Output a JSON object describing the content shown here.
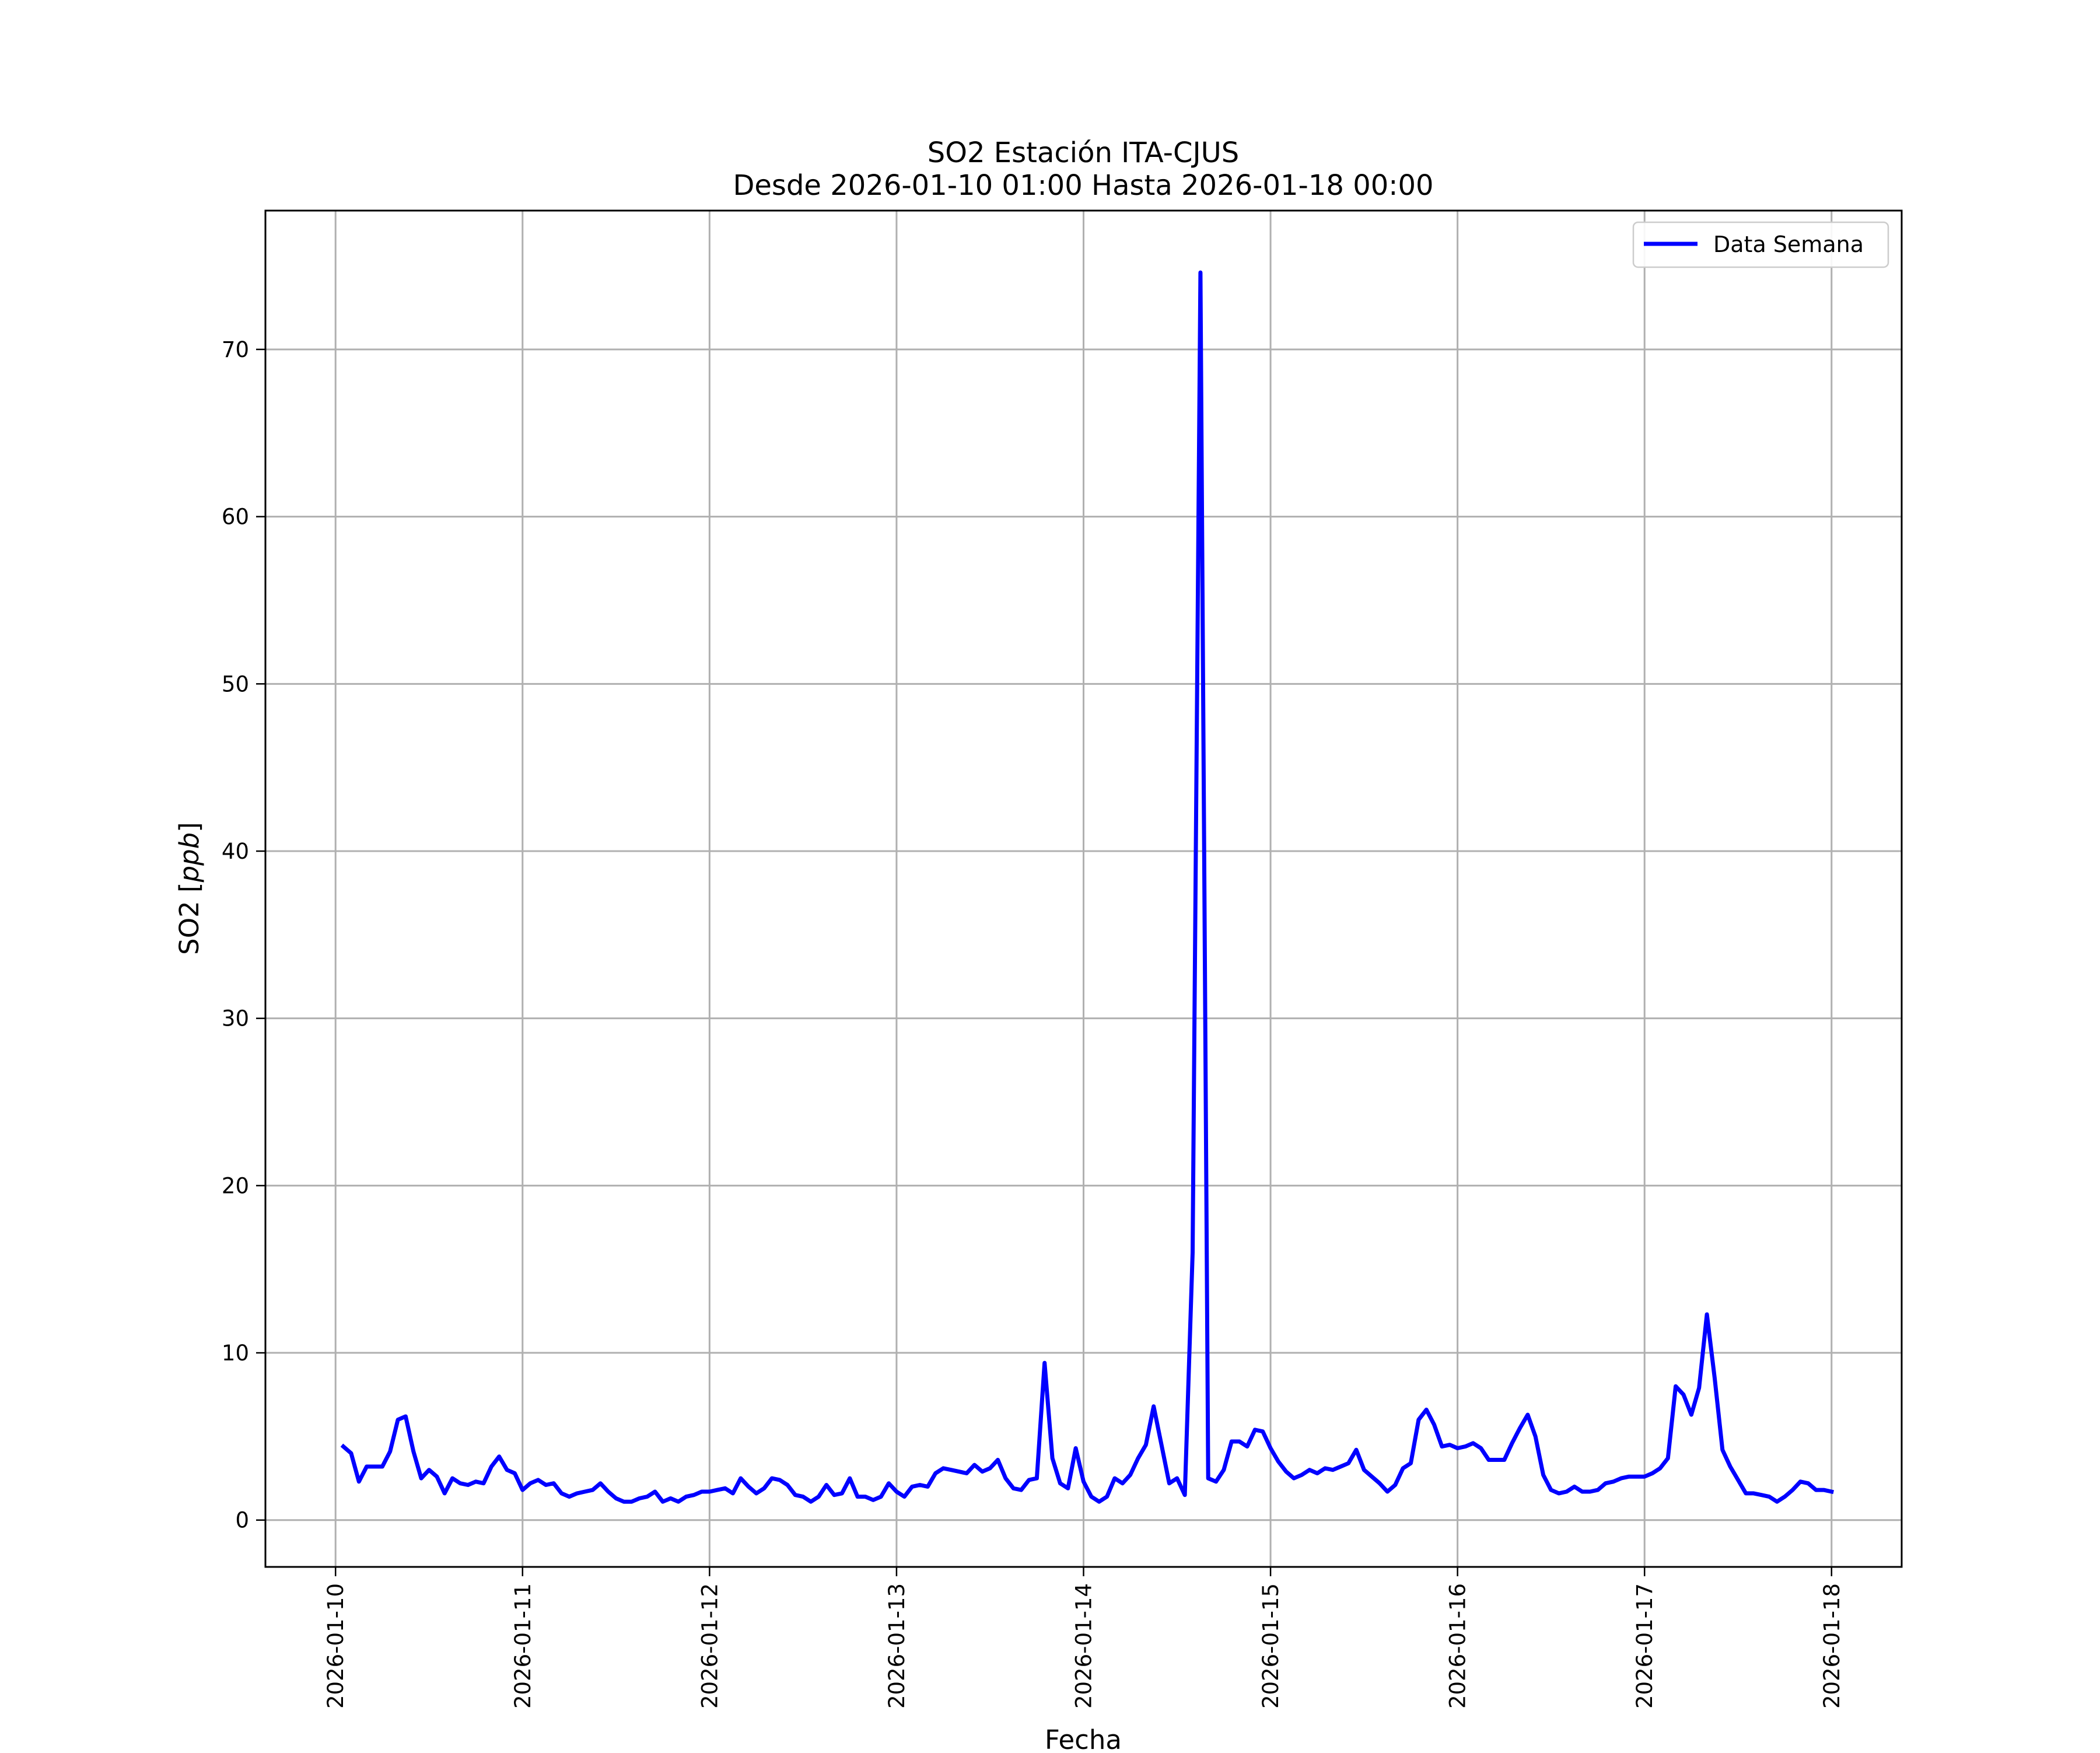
{
  "chart_data": {
    "type": "line",
    "title": "SO2 Estación ITA-CJUS",
    "subtitle": "Desde 2026-01-10 01:00 Hasta 2026-01-18 00:00",
    "xlabel": "Fecha",
    "ylabel_prefix": "SO2 [",
    "ylabel_unit": "ppb",
    "ylabel_suffix": "]",
    "grid": true,
    "legend_position": "top-right",
    "xlim": [
      "2026-01-09 15:00",
      "2026-01-18 09:00"
    ],
    "ylim": [
      -2.8,
      78.3
    ],
    "x_ticks": [
      "2026-01-10",
      "2026-01-11",
      "2026-01-12",
      "2026-01-13",
      "2026-01-14",
      "2026-01-15",
      "2026-01-16",
      "2026-01-17",
      "2026-01-18"
    ],
    "y_ticks": [
      0,
      10,
      20,
      30,
      40,
      50,
      60,
      70
    ],
    "series": [
      {
        "name": "Data Semana",
        "color": "#0000ff",
        "x_start": "2026-01-10 01:00",
        "x_step_hours": 1,
        "values": [
          4.4,
          4.0,
          2.3,
          3.2,
          3.2,
          3.2,
          4.1,
          6.0,
          6.2,
          4.1,
          2.5,
          3.0,
          2.6,
          1.6,
          2.5,
          2.2,
          2.1,
          2.3,
          2.2,
          3.2,
          3.8,
          3.0,
          2.8,
          1.8,
          2.2,
          2.4,
          2.1,
          2.2,
          1.6,
          1.4,
          1.6,
          1.7,
          1.8,
          2.2,
          1.7,
          1.3,
          1.1,
          1.1,
          1.3,
          1.4,
          1.7,
          1.1,
          1.3,
          1.1,
          1.4,
          1.5,
          1.7,
          1.7,
          1.8,
          1.9,
          1.6,
          2.5,
          2.0,
          1.6,
          1.9,
          2.5,
          2.4,
          2.1,
          1.5,
          1.4,
          1.1,
          1.4,
          2.1,
          1.5,
          1.6,
          2.5,
          1.4,
          1.4,
          1.2,
          1.4,
          2.2,
          1.7,
          1.4,
          2.0,
          2.1,
          2.0,
          2.8,
          3.1,
          3.0,
          2.9,
          2.8,
          3.3,
          2.9,
          3.1,
          3.6,
          2.5,
          1.9,
          1.8,
          2.4,
          2.5,
          9.4,
          3.7,
          2.2,
          1.9,
          4.3,
          2.3,
          1.4,
          1.1,
          1.4,
          2.5,
          2.2,
          2.7,
          3.7,
          4.5,
          6.8,
          4.5,
          2.2,
          2.5,
          1.5,
          16.0,
          74.6,
          2.5,
          2.3,
          3.0,
          4.7,
          4.7,
          4.4,
          5.4,
          5.3,
          4.3,
          3.5,
          2.9,
          2.5,
          2.7,
          3.0,
          2.8,
          3.1,
          3.0,
          3.2,
          3.4,
          4.2,
          3.0,
          2.6,
          2.2,
          1.7,
          2.1,
          3.1,
          3.4,
          6.0,
          6.6,
          5.7,
          4.4,
          4.5,
          4.3,
          4.4,
          4.6,
          4.3,
          3.6,
          3.6,
          3.6,
          4.6,
          5.5,
          6.3,
          5.0,
          2.7,
          1.8,
          1.6,
          1.7,
          2.0,
          1.7,
          1.7,
          1.8,
          2.2,
          2.3,
          2.5,
          2.6,
          2.6,
          2.6,
          2.8,
          3.1,
          3.7,
          8.0,
          7.5,
          6.3,
          7.9,
          12.3,
          8.5,
          4.2,
          3.2,
          2.4,
          1.6,
          1.6,
          1.5,
          1.4,
          1.1,
          1.4,
          1.8,
          2.3,
          2.2,
          1.8,
          1.8,
          1.7
        ]
      }
    ]
  }
}
